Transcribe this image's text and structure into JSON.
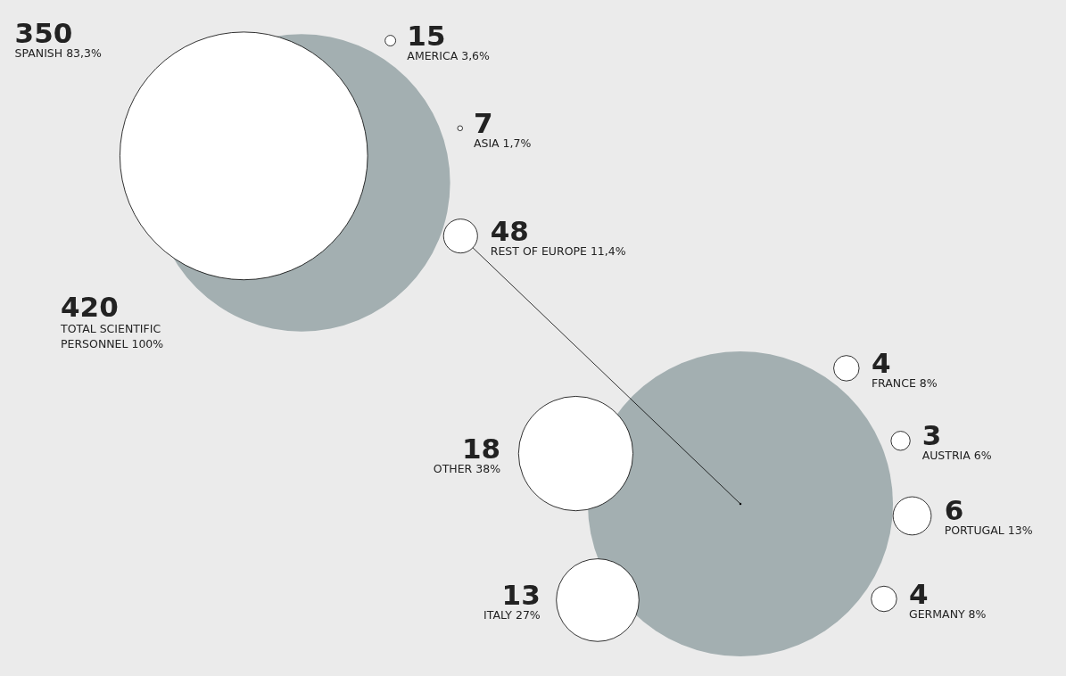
{
  "chart_data": [
    {
      "type": "other",
      "categories": [
        "TOTAL SCIENTIFIC PERSONNEL 100%",
        "SPANISH 83,3%",
        "AMERICA 3,6%",
        "ASIA 1,7%",
        "REST OF EUROPE 11,4%"
      ],
      "values": [
        420,
        350,
        15,
        7,
        48
      ],
      "data_labels": true,
      "colors": [
        "#a3afb1",
        "#ffffff",
        "#ffffff",
        "#ffffff",
        "#ffffff"
      ]
    },
    {
      "type": "other",
      "categories": [
        "FRANCE 8%",
        "AUSTRIA 6%",
        "PORTUGAL 13%",
        "GERMANY 8%",
        "ITALY 27%",
        "OTHER 38%"
      ],
      "values": [
        4,
        3,
        6,
        4,
        13,
        18
      ],
      "data_labels": true,
      "colors": [
        "#ffffff",
        "#ffffff",
        "#ffffff",
        "#ffffff",
        "#ffffff",
        "#ffffff"
      ]
    }
  ]
}
